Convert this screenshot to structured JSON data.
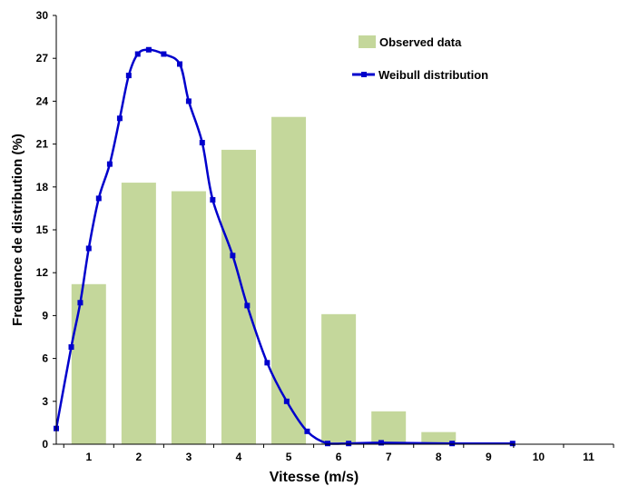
{
  "chart_data": {
    "type": "bar",
    "xlabel": "Vitesse (m/s)",
    "ylabel": "Frequence de distribution (%)",
    "ylim": [
      0,
      30
    ],
    "yticks": [
      0,
      3,
      6,
      9,
      12,
      15,
      18,
      21,
      24,
      27,
      30
    ],
    "xlim": [
      0.35,
      11.5
    ],
    "xticks": [
      1,
      2,
      3,
      4,
      5,
      6,
      7,
      8,
      9,
      10,
      11
    ],
    "grid": false,
    "legend_position": "top-right",
    "colors": {
      "bar": "#c4d79b",
      "line": "#0000cc"
    },
    "series": [
      {
        "name": "Observed data",
        "type": "bar",
        "x": [
          1,
          2,
          3,
          4,
          5,
          6,
          7,
          8
        ],
        "values": [
          11.2,
          18.3,
          17.7,
          20.6,
          22.9,
          9.1,
          2.3,
          0.85
        ]
      },
      {
        "name": "Weibull distribution",
        "type": "line",
        "x": [
          0.35,
          0.65,
          0.83,
          1.0,
          1.2,
          1.42,
          1.62,
          1.8,
          1.98,
          2.2,
          2.5,
          2.82,
          3.0,
          3.27,
          3.48,
          3.88,
          4.17,
          4.57,
          4.96,
          5.37,
          5.78,
          6.2,
          6.85,
          8.27,
          9.48
        ],
        "values": [
          1.1,
          6.8,
          9.9,
          13.7,
          17.2,
          19.6,
          22.8,
          25.8,
          27.3,
          27.6,
          27.3,
          26.6,
          24.0,
          21.1,
          17.1,
          13.2,
          9.7,
          5.7,
          3.0,
          0.9,
          0.05,
          0.05,
          0.1,
          0.05,
          0.05
        ]
      }
    ]
  }
}
